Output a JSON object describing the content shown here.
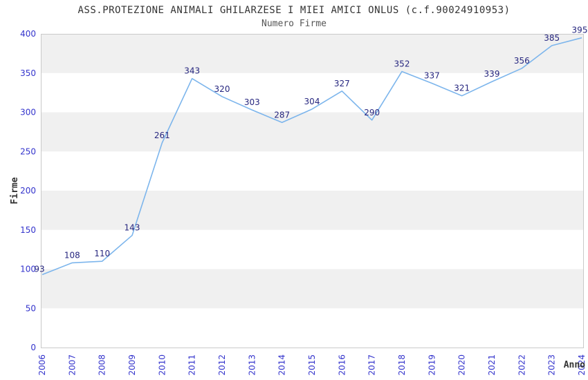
{
  "chart_data": {
    "type": "line",
    "title": "ASS.PROTEZIONE ANIMALI GHILARZESE I MIEI AMICI ONLUS (c.f.90024910953)",
    "subtitle": "Numero Firme",
    "xlabel": "Anno",
    "ylabel": "Firme",
    "categories": [
      2006,
      2007,
      2008,
      2009,
      2010,
      2011,
      2012,
      2013,
      2014,
      2015,
      2016,
      2017,
      2018,
      2019,
      2020,
      2021,
      2022,
      2023,
      2024
    ],
    "series": [
      {
        "name": "Numero Firme",
        "values": [
          93,
          108,
          110,
          143,
          261,
          343,
          320,
          303,
          287,
          304,
          327,
          290,
          352,
          337,
          321,
          339,
          356,
          385,
          395
        ]
      }
    ],
    "ylim": [
      0,
      400
    ],
    "yticks": [
      0,
      50,
      100,
      150,
      200,
      250,
      300,
      350,
      400
    ],
    "ytick_step": 50,
    "grid": "alternating-horizontal-bands",
    "legend": "none",
    "data_labels": true,
    "colors": {
      "line": "#7cb5ec",
      "band": "#f0f0f0",
      "frame": "#c9c9c9",
      "tick_label": "#3333cc",
      "data_label": "#26267f",
      "title": "#333333",
      "subtitle": "#555555",
      "axis_title": "#333333",
      "background": "#ffffff"
    }
  }
}
